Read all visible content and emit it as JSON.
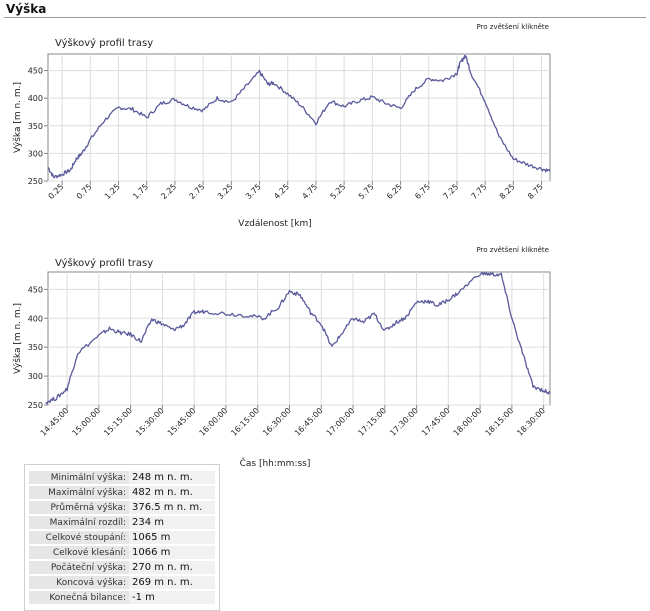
{
  "section": {
    "title": "Výška"
  },
  "charts": [
    {
      "zoom_hint": "Pro zvětšení klikněte",
      "chart_data": {
        "type": "line",
        "title": "Výškový profil trasy",
        "xlabel": "Vzdálenost [km]",
        "ylabel": "Výška [m n. m.]",
        "ylim": [
          250,
          480
        ],
        "xlim": [
          0,
          8.9
        ],
        "grid": true,
        "x_ticks": [
          "0.25",
          "0.75",
          "1.25",
          "1.75",
          "2.25",
          "2.75",
          "3.25",
          "3.75",
          "4.25",
          "4.75",
          "5.25",
          "5.75",
          "6.25",
          "6.75",
          "7.25",
          "7.75",
          "8.25",
          "8.75"
        ],
        "y_ticks": [
          "250",
          "300",
          "350",
          "400",
          "450"
        ],
        "series": [
          {
            "x": [
              0,
              0.1,
              0.25,
              0.4,
              0.5,
              0.6,
              0.75,
              1.0,
              1.25,
              1.5,
              1.75,
              2.0,
              2.25,
              2.5,
              2.75,
              3.0,
              3.25,
              3.5,
              3.75,
              3.9,
              4.0,
              4.25,
              4.5,
              4.75,
              5.0,
              5.25,
              5.5,
              5.75,
              6.0,
              6.25,
              6.5,
              6.75,
              7.0,
              7.25,
              7.3,
              7.4,
              7.5,
              7.75,
              8.0,
              8.25,
              8.5,
              8.75,
              8.9
            ],
            "y": [
              275,
              257,
              262,
              270,
              290,
              300,
              325,
              360,
              383,
              380,
              365,
              390,
              398,
              385,
              378,
              400,
              392,
              420,
              448,
              425,
              428,
              408,
              385,
              355,
              395,
              385,
              395,
              402,
              390,
              382,
              415,
              435,
              432,
              445,
              462,
              478,
              445,
              395,
              330,
              290,
              280,
              272,
              268
            ]
          }
        ]
      }
    },
    {
      "zoom_hint": "Pro zvětšení klikněte",
      "chart_data": {
        "type": "line",
        "title": "Výškový profil trasy",
        "xlabel": "Čas  [hh:mm:ss]",
        "ylabel": "Výška [m n. m.]",
        "ylim": [
          250,
          480
        ],
        "grid": true,
        "x_ticks": [
          "14:45:00",
          "15:00:00",
          "15:15:00",
          "15:30:00",
          "15:45:00",
          "16:00:00",
          "16:15:00",
          "16:30:00",
          "16:45:00",
          "17:00:00",
          "17:15:00",
          "17:30:00",
          "17:45:00",
          "18:00:00",
          "18:15:00",
          "18:30:00"
        ],
        "y_ticks": [
          "250",
          "300",
          "350",
          "400",
          "450"
        ],
        "series": [
          {
            "x": [
              "14:35:00",
              "14:40:00",
              "14:45:00",
              "14:50:00",
              "15:00:00",
              "15:05:00",
              "15:10:00",
              "15:15:00",
              "15:20:00",
              "15:25:00",
              "15:30:00",
              "15:35:00",
              "15:40:00",
              "15:45:00",
              "15:50:00",
              "16:00:00",
              "16:10:00",
              "16:18:00",
              "16:25:00",
              "16:30:00",
              "16:35:00",
              "16:40:00",
              "16:45:00",
              "16:50:00",
              "16:55:00",
              "17:00:00",
              "17:05:00",
              "17:10:00",
              "17:15:00",
              "17:20:00",
              "17:25:00",
              "17:30:00",
              "17:35:00",
              "17:40:00",
              "17:45:00",
              "17:50:00",
              "18:00:00",
              "18:05:00",
              "18:10:00",
              "18:15:00",
              "18:20:00",
              "18:25:00",
              "18:30:00",
              "18:33:00"
            ],
            "y": [
              255,
              262,
              278,
              340,
              370,
              382,
              375,
              372,
              360,
              398,
              390,
              380,
              388,
              410,
              412,
              408,
              405,
              400,
              420,
              447,
              440,
              410,
              390,
              350,
              375,
              400,
              393,
              408,
              378,
              392,
              402,
              428,
              430,
              422,
              432,
              445,
              478,
              476,
              475,
              400,
              340,
              282,
              275,
              270
            ]
          }
        ]
      }
    }
  ],
  "stats": [
    {
      "label": "Minimální výška:",
      "value": "248 m n. m."
    },
    {
      "label": "Maximální výška:",
      "value": "482 m n. m."
    },
    {
      "label": "Průměrná výška:",
      "value": "376.5 m n. m."
    },
    {
      "label": "Maximální rozdíl:",
      "value": "234 m"
    },
    {
      "label": "Celkové stoupání:",
      "value": "1065 m"
    },
    {
      "label": "Celkové klesání:",
      "value": "1066 m"
    },
    {
      "label": "Počáteční výška:",
      "value": "270 m n. m."
    },
    {
      "label": "Koncová výška:",
      "value": "269 m n. m."
    },
    {
      "label": "Konečná bilance:",
      "value": "-1 m"
    }
  ],
  "colors": {
    "line": "#5a5a9c",
    "grid": "#dddddd",
    "axis": "#888888"
  }
}
